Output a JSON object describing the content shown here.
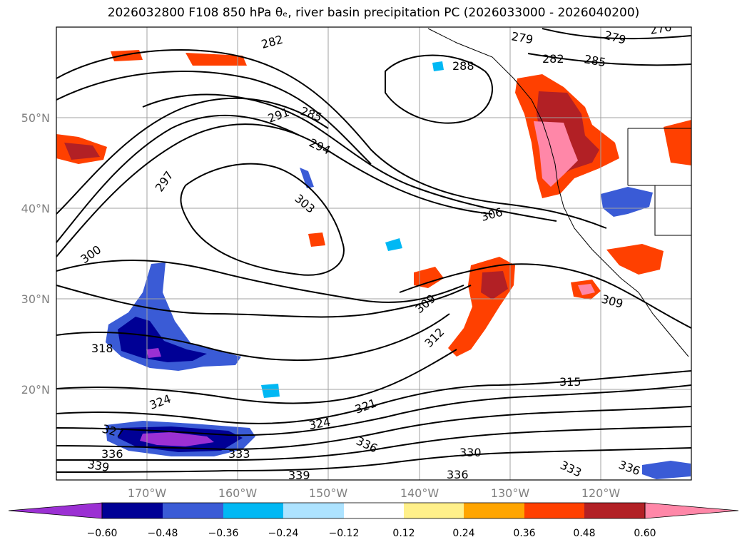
{
  "title": "2026032800 F108 850 hPa θₑ, river basin precipitation PC (2026033000 - 2026040200)",
  "map": {
    "projection": "cylindrical",
    "lon_range": [
      -180,
      -110
    ],
    "lat_range": [
      10,
      60
    ],
    "grid": true,
    "lon_ticks": [
      {
        "lon": -170,
        "label": "170°W"
      },
      {
        "lon": -160,
        "label": "160°W"
      },
      {
        "lon": -150,
        "label": "150°W"
      },
      {
        "lon": -140,
        "label": "140°W"
      },
      {
        "lon": -130,
        "label": "130°W"
      },
      {
        "lon": -120,
        "label": "120°W"
      }
    ],
    "lat_ticks": [
      {
        "lat": 50,
        "label": "50°N"
      },
      {
        "lat": 40,
        "label": "40°N"
      },
      {
        "lat": 30,
        "label": "30°N"
      },
      {
        "lat": 20,
        "label": "20°N"
      }
    ],
    "contour_labels": [
      "282",
      "279",
      "276",
      "279",
      "282",
      "285",
      "288",
      "291",
      "285",
      "294",
      "297",
      "303",
      "300",
      "306",
      "309",
      "309",
      "312",
      "318",
      "324",
      "321",
      "324",
      "315",
      "327",
      "336",
      "333",
      "336",
      "330",
      "339",
      "339",
      "336",
      "333",
      "336"
    ]
  },
  "colorbar": {
    "extend": "both",
    "ticks": [
      "−0.60",
      "−0.48",
      "−0.36",
      "−0.24",
      "−0.12",
      "0.12",
      "0.24",
      "0.36",
      "0.48",
      "0.60"
    ],
    "colors": {
      "under": "#9b30d3",
      "bins": [
        "#000095",
        "#3a5bd6",
        "#00b8f4",
        "#ade3ff",
        "#ffffff",
        "#fff08a",
        "#ffa500",
        "#ff4000",
        "#b22025"
      ],
      "over": "#ff87a8"
    }
  }
}
